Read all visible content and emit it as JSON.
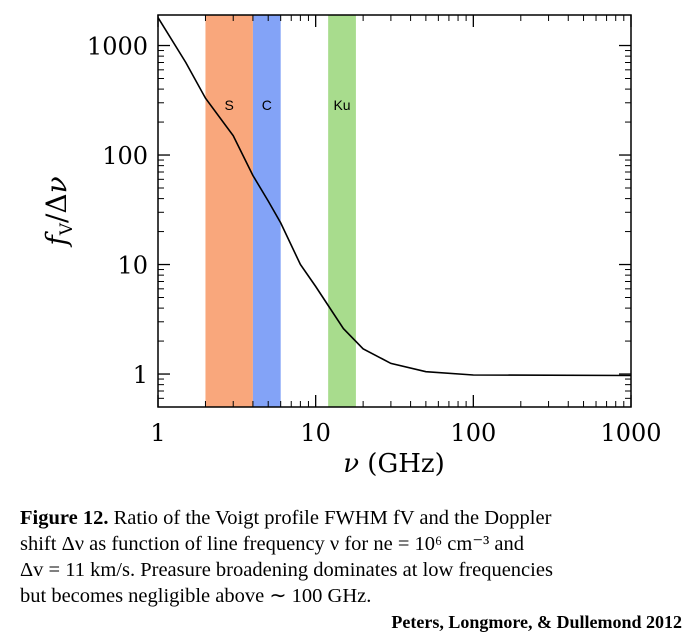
{
  "chart_data": {
    "type": "line",
    "xscale": "log",
    "yscale": "log",
    "xlim": [
      1,
      1000
    ],
    "ylim": [
      0.5,
      1900
    ],
    "xticks": [
      1,
      10,
      100,
      1000
    ],
    "xtick_labels": [
      "1",
      "10",
      "100",
      "1000"
    ],
    "yticks": [
      1,
      10,
      100,
      1000
    ],
    "ytick_labels": [
      "1",
      "10",
      "100",
      "1000"
    ],
    "xlabel": "ν (GHz)",
    "ylabel": "fV/Δν",
    "bands": [
      {
        "label": "S",
        "x0": 2,
        "x1": 4,
        "color": "#f9a77c"
      },
      {
        "label": "C",
        "x0": 4,
        "x1": 6,
        "color": "#83a3f7"
      },
      {
        "label": "Ku",
        "x0": 12,
        "x1": 18,
        "color": "#a8dc8d"
      }
    ],
    "series": [
      {
        "color": "#000000",
        "points": [
          [
            1,
            1800
          ],
          [
            1.5,
            700
          ],
          [
            2,
            330
          ],
          [
            3,
            150
          ],
          [
            4,
            65
          ],
          [
            5,
            38
          ],
          [
            6,
            24
          ],
          [
            8,
            10
          ],
          [
            10,
            6.3
          ],
          [
            15,
            2.6
          ],
          [
            20,
            1.7
          ],
          [
            30,
            1.25
          ],
          [
            50,
            1.05
          ],
          [
            100,
            0.98
          ],
          [
            1000,
            0.97
          ]
        ]
      }
    ]
  },
  "caption": {
    "label": "Figure 12.",
    "lines": [
      "Ratio of the Voigt profile FWHM fV and the Doppler",
      "shift Δν as function of line frequency ν for ne = 10⁶ cm⁻³ and",
      "Δv = 11 km/s. Preasure broadening dominates at low frequencies",
      "but becomes negligible above ∼ 100 GHz."
    ]
  },
  "credit": "Peters, Longmore, & Dullemond 2012"
}
